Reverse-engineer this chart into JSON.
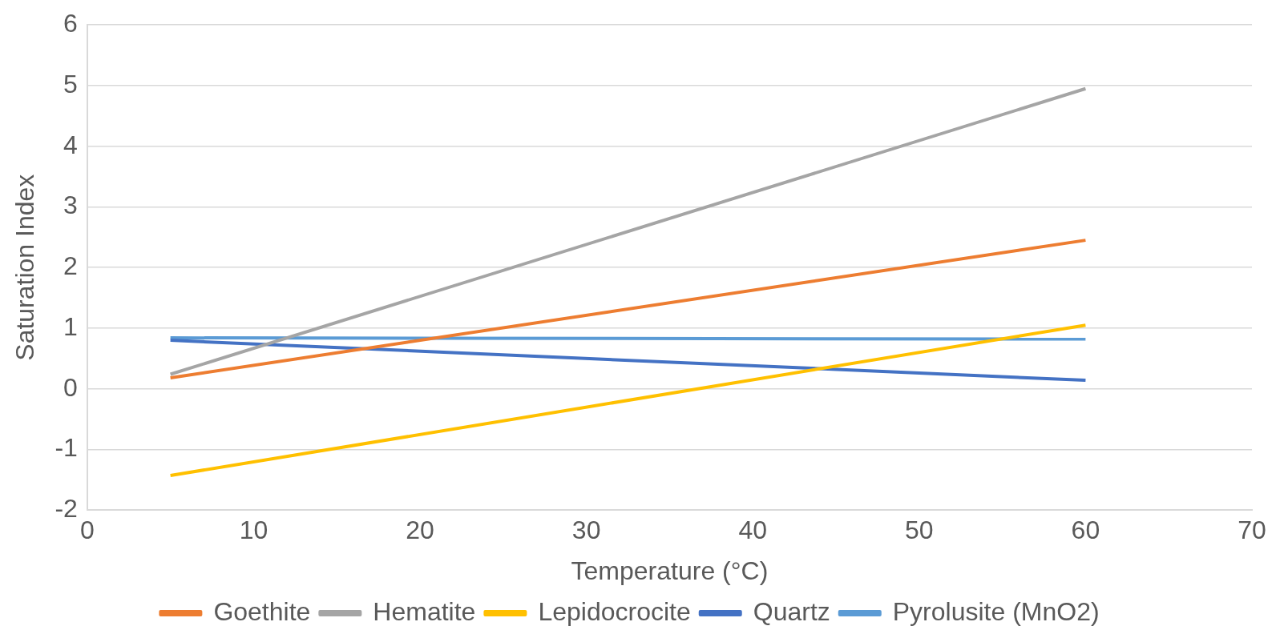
{
  "chart_data": {
    "type": "line",
    "xlabel": "Temperature (°C)",
    "ylabel": "Saturation Index",
    "x": [
      5,
      60
    ],
    "xlim": [
      0,
      70
    ],
    "xticks": [
      0,
      10,
      20,
      30,
      40,
      50,
      60,
      70
    ],
    "ylim": [
      -2,
      6
    ],
    "yticks": [
      -2,
      -1,
      0,
      1,
      2,
      3,
      4,
      5,
      6
    ],
    "grid": "y",
    "legend": "bottom",
    "marker": "none",
    "line_style": "solid",
    "series": [
      {
        "name": "Goethite",
        "color": "#ed7d31",
        "values": [
          0.18,
          2.45
        ]
      },
      {
        "name": "Hematite",
        "color": "#a5a5a5",
        "values": [
          0.24,
          4.95
        ]
      },
      {
        "name": "Lepidocrocite",
        "color": "#ffc000",
        "values": [
          -1.43,
          1.05
        ]
      },
      {
        "name": "Quartz",
        "color": "#4472c4",
        "values": [
          0.8,
          0.14
        ]
      },
      {
        "name": "Pyrolusite (MnO2)",
        "color": "#5b9bd5",
        "values": [
          0.84,
          0.82
        ]
      }
    ]
  }
}
